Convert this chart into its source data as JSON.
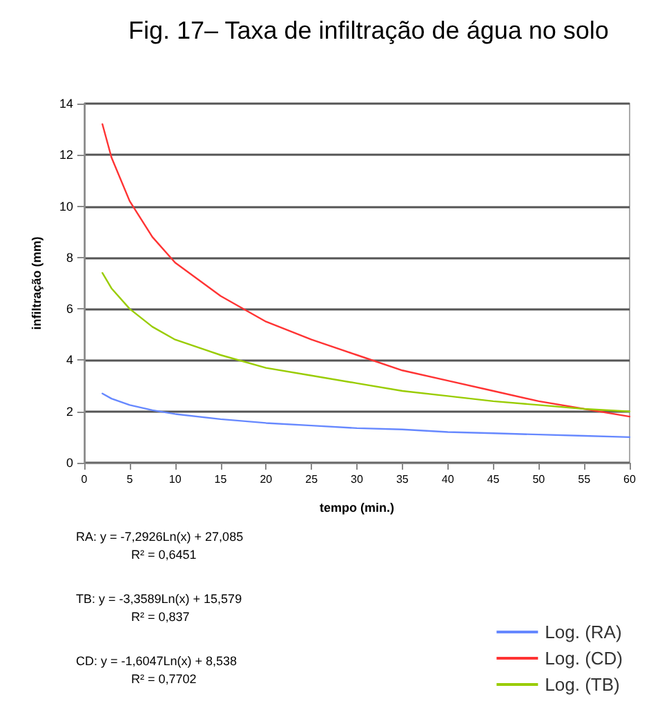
{
  "chart_data": {
    "type": "line",
    "title": "Fig. 17– Taxa de infiltração de água no solo",
    "xlabel": "tempo (min.)",
    "ylabel": "infiltração (mm)",
    "x": [
      2,
      3,
      5,
      7.5,
      10,
      15,
      20,
      25,
      30,
      35,
      40,
      45,
      50,
      55,
      60
    ],
    "series": [
      {
        "name": "Log. (RA)",
        "color": "#6688ff",
        "values": [
          2.7,
          2.5,
          2.25,
          2.05,
          1.9,
          1.7,
          1.55,
          1.45,
          1.35,
          1.3,
          1.2,
          1.15,
          1.1,
          1.05,
          1.0
        ]
      },
      {
        "name": "Log. (CD)",
        "color": "#ff3333",
        "values": [
          13.2,
          11.9,
          10.2,
          8.8,
          7.8,
          6.5,
          5.5,
          4.8,
          4.2,
          3.6,
          3.2,
          2.8,
          2.4,
          2.1,
          1.8
        ]
      },
      {
        "name": "Log. (TB)",
        "color": "#99cc00",
        "values": [
          7.4,
          6.8,
          6.0,
          5.3,
          4.8,
          4.2,
          3.7,
          3.4,
          3.1,
          2.8,
          2.6,
          2.4,
          2.25,
          2.1,
          2.0
        ]
      }
    ],
    "xlim": [
      0,
      60
    ],
    "xticks": [
      0,
      5,
      10,
      15,
      20,
      25,
      30,
      35,
      40,
      45,
      50,
      55,
      60
    ],
    "ylim": [
      0,
      14
    ],
    "yticks": [
      0,
      2,
      4,
      6,
      8,
      10,
      12,
      14
    ],
    "grid": "y",
    "legend": "bottom right",
    "marker": "none",
    "line_style": "solid",
    "annotations": [
      "RA: y = -7,2926Ln(x) + 27,085",
      "R² = 0,6451",
      "TB: y = -3,3589Ln(x) + 15,579",
      "R² = 0,837",
      "CD: y = -1,6047Ln(x) + 8,538",
      "R² = 0,7702"
    ]
  }
}
